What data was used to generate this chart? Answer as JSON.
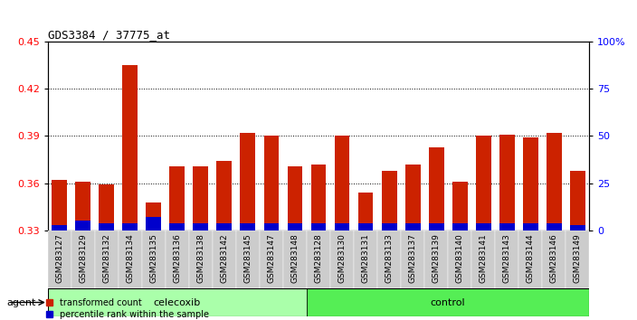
{
  "title": "GDS3384 / 37775_at",
  "samples": [
    "GSM283127",
    "GSM283129",
    "GSM283132",
    "GSM283134",
    "GSM283135",
    "GSM283136",
    "GSM283138",
    "GSM283142",
    "GSM283145",
    "GSM283147",
    "GSM283148",
    "GSM283128",
    "GSM283130",
    "GSM283131",
    "GSM283133",
    "GSM283137",
    "GSM283139",
    "GSM283140",
    "GSM283141",
    "GSM283143",
    "GSM283144",
    "GSM283146",
    "GSM283149"
  ],
  "transformed_count": [
    0.362,
    0.361,
    0.359,
    0.435,
    0.348,
    0.371,
    0.371,
    0.374,
    0.392,
    0.39,
    0.371,
    0.372,
    0.39,
    0.354,
    0.368,
    0.372,
    0.383,
    0.361,
    0.39,
    0.391,
    0.389,
    0.392,
    0.368
  ],
  "percentile_rank": [
    3.0,
    5.0,
    4.0,
    4.0,
    7.0,
    4.0,
    4.0,
    4.0,
    4.0,
    4.0,
    4.0,
    4.0,
    4.0,
    4.0,
    4.0,
    4.0,
    4.0,
    4.0,
    4.0,
    4.0,
    4.0,
    4.0,
    3.0
  ],
  "celecoxib_count": 11,
  "control_count": 12,
  "ylim_left": [
    0.33,
    0.45
  ],
  "ylim_right": [
    0,
    100
  ],
  "yticks_left": [
    0.33,
    0.36,
    0.39,
    0.42,
    0.45
  ],
  "yticks_right": [
    0,
    25,
    50,
    75,
    100
  ],
  "ytick_labels_right": [
    "0",
    "25",
    "50",
    "75",
    "100%"
  ],
  "bar_color_red": "#cc2200",
  "bar_color_blue": "#0000cc",
  "bg_plot": "#ffffff",
  "bg_xticklabel": "#cccccc",
  "bg_agent_celecoxib": "#aaffaa",
  "bg_agent_control": "#55ee55",
  "agent_label": "agent",
  "celecoxib_label": "celecoxib",
  "control_label": "control",
  "legend_red": "transformed count",
  "legend_blue": "percentile rank within the sample",
  "bar_width": 0.65
}
